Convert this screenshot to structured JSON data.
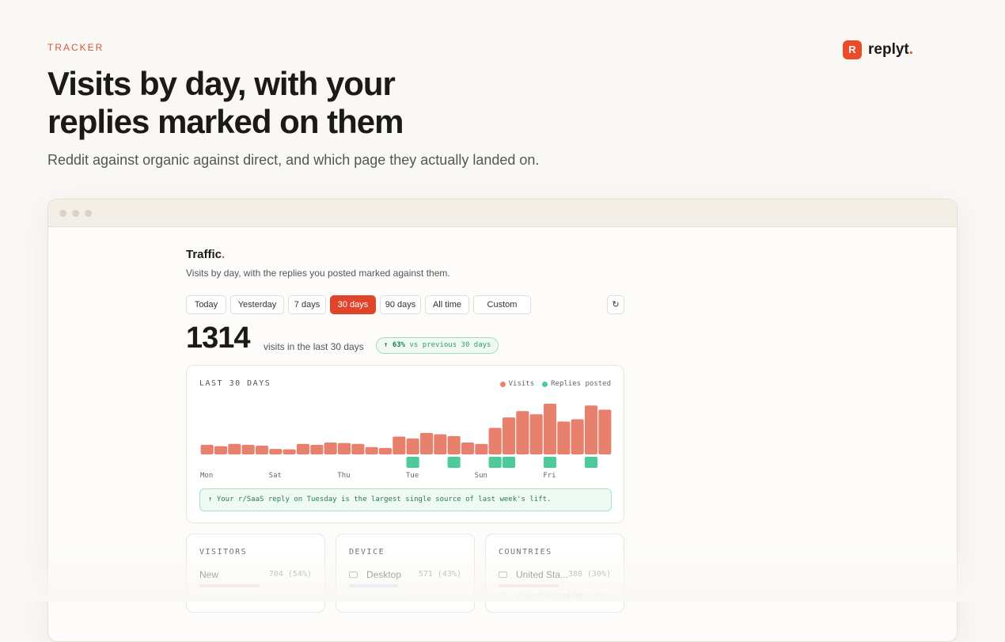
{
  "header": {
    "eyebrow": "TRACKER",
    "title_lines": [
      "Visits by day, with your",
      "replies marked on them"
    ],
    "subtitle": "Reddit against organic against direct, and which page they actually landed on.",
    "logo_letter": "R",
    "logo_name": "replyt"
  },
  "app": {
    "title": "Traffic",
    "subtitle": "Visits by day, with the replies you posted marked against them.",
    "ranges": [
      "Today",
      "Yesterday",
      "7 days",
      "30 days",
      "90 days",
      "All time",
      "Custom"
    ],
    "active_range": 3,
    "refresh": "↻",
    "stat": "1314",
    "stat_label": "visits in the last 30 days",
    "change": "↑ 63%",
    "change_label": "vs previous 30 days",
    "insight": "↑  Your r/SaaS reply on Tuesday is the largest single source of last week's lift.",
    "cards": [
      {
        "title": "VISITORS",
        "rows": [
          {
            "label": "New",
            "value": "704 (54%)"
          }
        ]
      },
      {
        "title": "DEVICE",
        "rows": [
          {
            "label": "Desktop",
            "value": "571 (43%)"
          }
        ]
      },
      {
        "title": "COUNTRIES",
        "rows": [
          {
            "label": "United Sta...",
            "value": "388 (30%)"
          },
          {
            "label": "United Kingdom",
            "value": "101 (8%)"
          }
        ]
      }
    ]
  },
  "chart_data": {
    "type": "bar",
    "title": "LAST 30 DAYS",
    "categories": [
      "Mon",
      null,
      null,
      null,
      null,
      "Sat",
      null,
      null,
      null,
      null,
      "Thu",
      null,
      null,
      null,
      null,
      "Tue",
      null,
      null,
      null,
      null,
      "Sun",
      null,
      null,
      null,
      null,
      "Fri",
      null,
      null,
      null,
      null
    ],
    "series": [
      {
        "name": "Visits",
        "color": "#e8806e",
        "values": [
          21,
          18,
          23,
          21,
          19,
          12,
          11,
          23,
          21,
          26,
          25,
          23,
          16,
          14,
          39,
          35,
          47,
          44,
          40,
          26,
          23,
          58,
          81,
          95,
          88,
          111,
          72,
          77,
          107,
          98
        ]
      },
      {
        "name": "Replies posted",
        "color": "#4ecb9b",
        "values": [
          0,
          0,
          0,
          0,
          0,
          0,
          0,
          0,
          0,
          0,
          0,
          0,
          0,
          0,
          0,
          1,
          0,
          0,
          1,
          0,
          0,
          1,
          1,
          0,
          0,
          1,
          0,
          0,
          1,
          0
        ]
      }
    ]
  }
}
